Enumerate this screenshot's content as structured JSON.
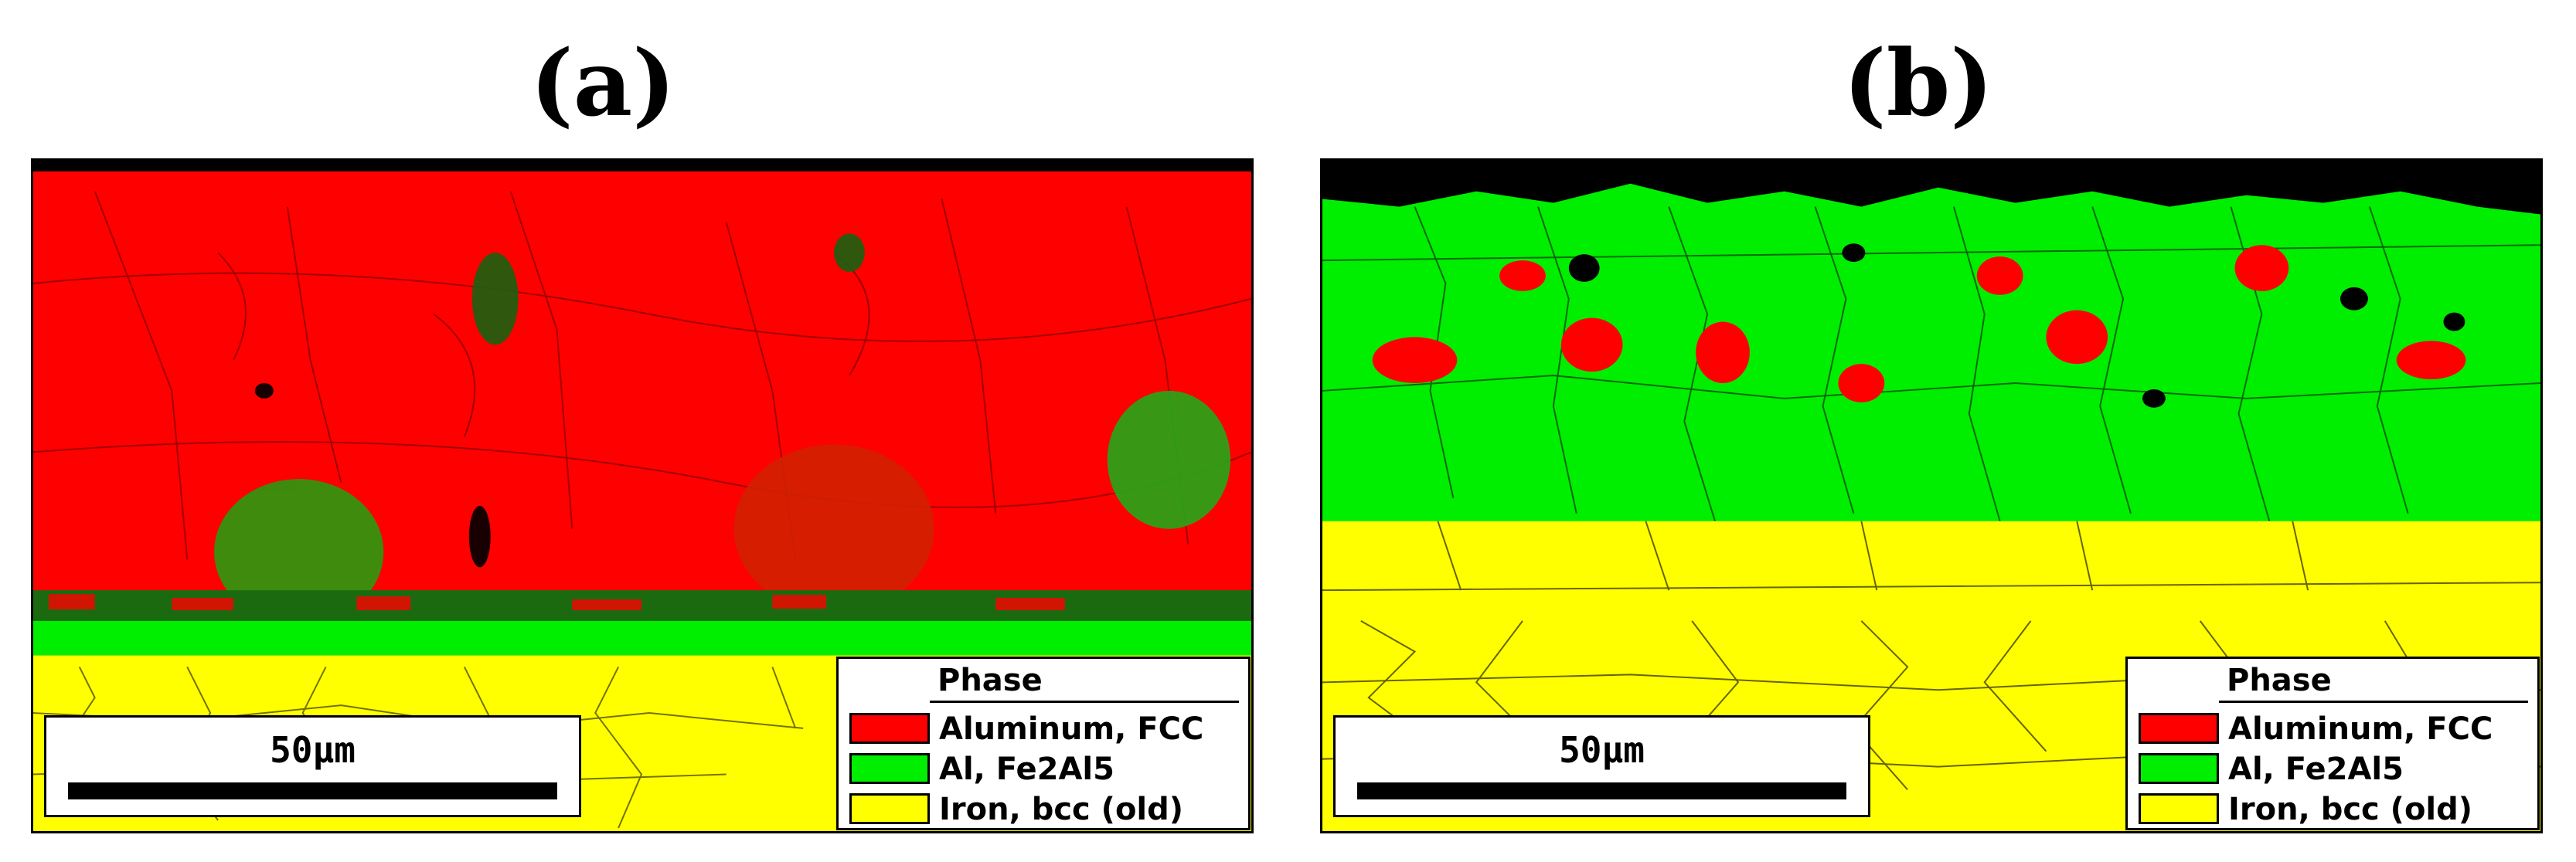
{
  "panels": [
    {
      "label": "(a)",
      "scale_bar_label": "50μm",
      "legend": {
        "title": "Phase",
        "entries": [
          {
            "name": "Aluminum, FCC",
            "color": "#ff0000"
          },
          {
            "name": "Al, Fe2Al5",
            "color": "#00ee00"
          },
          {
            "name": "Iron, bcc (old)",
            "color": "#ffff00"
          }
        ]
      }
    },
    {
      "label": "(b)",
      "scale_bar_label": "50μm",
      "legend": {
        "title": "Phase",
        "entries": [
          {
            "name": "Aluminum, FCC",
            "color": "#ff0000"
          },
          {
            "name": "Al, Fe2Al5",
            "color": "#00ee00"
          },
          {
            "name": "Iron, bcc (old)",
            "color": "#ffff00"
          }
        ]
      }
    }
  ]
}
